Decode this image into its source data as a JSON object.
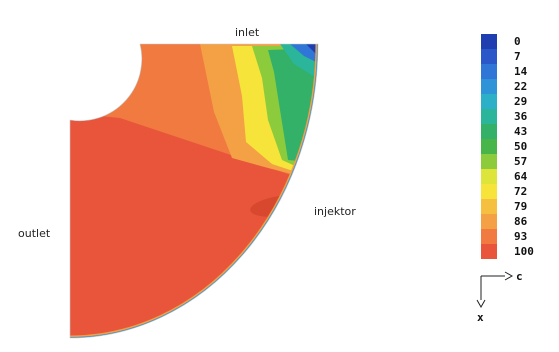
{
  "labels": {
    "inlet": "inlet",
    "outlet": "outlet",
    "injector": "injektor"
  },
  "legend": {
    "ticks": [
      "0",
      "7",
      "14",
      "22",
      "29",
      "36",
      "43",
      "50",
      "57",
      "64",
      "72",
      "79",
      "86",
      "93",
      "100"
    ],
    "colors": [
      "#1f3fb0",
      "#2a58c8",
      "#2f76d6",
      "#2f93d8",
      "#2cb0c8",
      "#2bb59a",
      "#33b168",
      "#47b54a",
      "#8ccc3c",
      "#dde43a",
      "#f6e43a",
      "#f5c040",
      "#f4a044",
      "#f07a40",
      "#e8553a"
    ]
  },
  "axes": {
    "horizontal": "c",
    "vertical": "x"
  }
}
